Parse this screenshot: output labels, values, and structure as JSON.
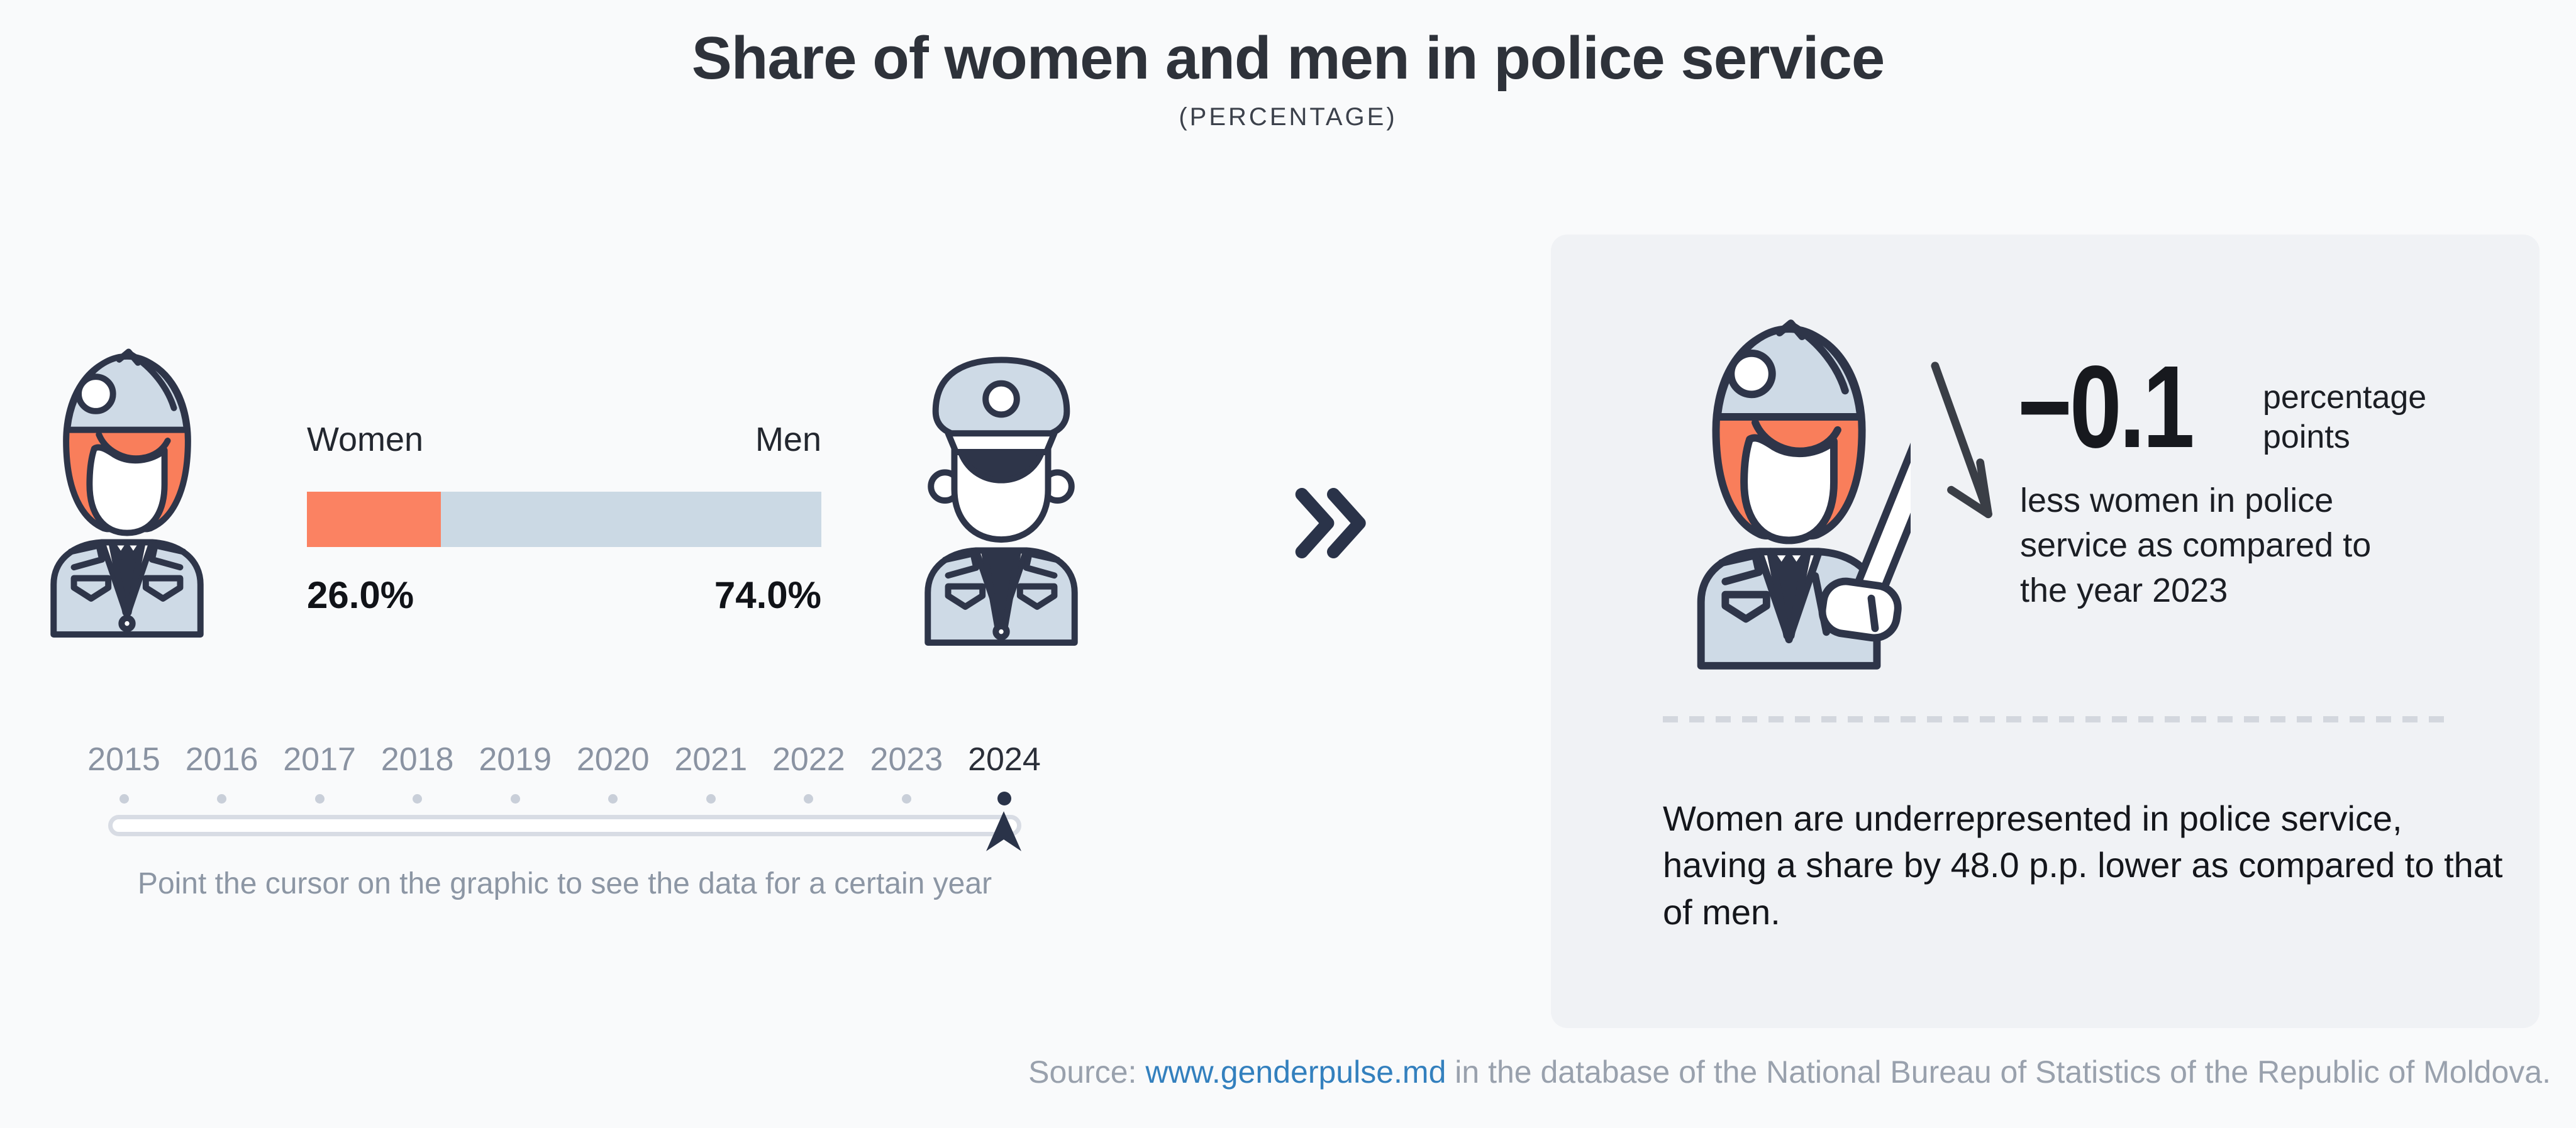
{
  "title": "Share of women and men in police service",
  "subtitle": "(PERCENTAGE)",
  "chart_data": {
    "type": "bar",
    "title": "Share of women and men in police service",
    "subtitle": "(PERCENTAGE)",
    "unit": "percent",
    "categories": [
      "Women",
      "Men"
    ],
    "values": [
      26.0,
      74.0
    ],
    "value_labels": [
      "26.0%",
      "74.0%"
    ],
    "years": [
      "2015",
      "2016",
      "2017",
      "2018",
      "2019",
      "2020",
      "2021",
      "2022",
      "2023",
      "2024"
    ],
    "selected_year": "2024",
    "change_vs_previous_year_pp": -0.1,
    "gap_pp": 48.0,
    "colors": {
      "women": "#fb8262",
      "men": "#cbd9e4"
    },
    "legend_position": "above-bar",
    "grid": false
  },
  "labels": {
    "women": "Women",
    "men": "Men",
    "women_value": "26.0%",
    "men_value": "74.0%"
  },
  "timeline": {
    "selected": "2024",
    "hint": "Point the cursor on the graphic to see the data for a certain year"
  },
  "insight": {
    "value": "−0.1",
    "unit": "percentage points",
    "description": "less women in police service as compared to the year 2023",
    "summary": "Women are underrepresented in police service, having a share by 48.0 p.p. lower as compared to that of men."
  },
  "footer": {
    "prefix": "Source: ",
    "link": "www.genderpulse.md",
    "suffix": " in the database of the National Bureau of Statistics of the Republic of Moldova."
  }
}
